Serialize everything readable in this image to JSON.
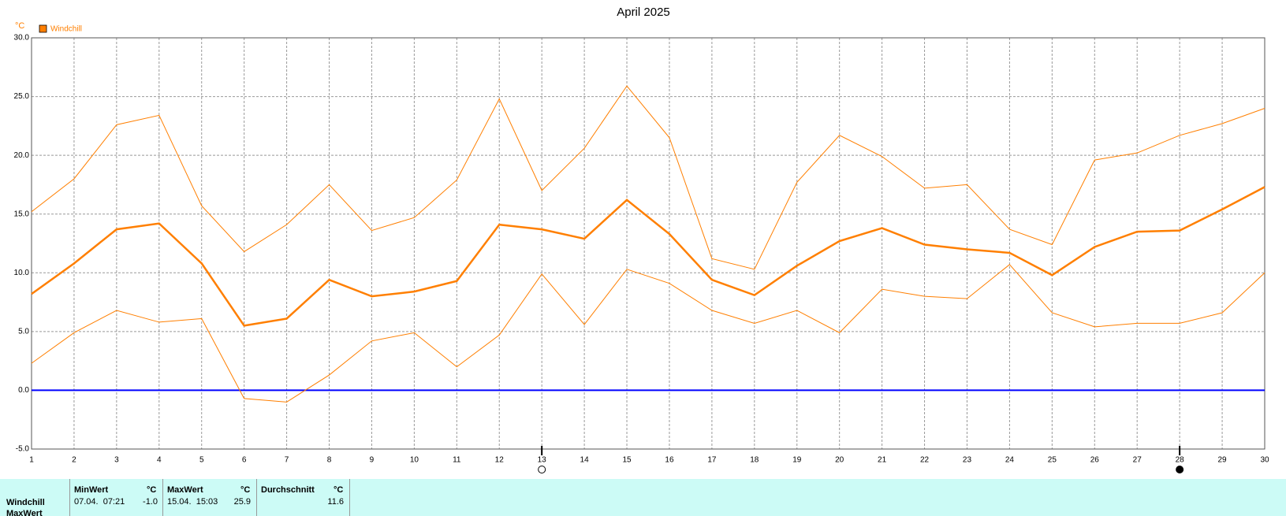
{
  "chart_data": {
    "type": "line",
    "title": "April 2025",
    "y_unit": "°C",
    "x": [
      1,
      2,
      3,
      4,
      5,
      6,
      7,
      8,
      9,
      10,
      11,
      12,
      13,
      14,
      15,
      16,
      17,
      18,
      19,
      20,
      21,
      22,
      23,
      24,
      25,
      26,
      27,
      28,
      29,
      30
    ],
    "xlim": [
      1,
      30
    ],
    "xticks": [
      1,
      2,
      3,
      4,
      5,
      6,
      7,
      8,
      9,
      10,
      11,
      12,
      13,
      14,
      15,
      16,
      17,
      18,
      19,
      20,
      21,
      22,
      23,
      24,
      25,
      26,
      27,
      28,
      29,
      30
    ],
    "ylim": [
      -5,
      30
    ],
    "yticks": [
      {
        "value": -5,
        "label": "-5.0"
      },
      {
        "value": 0,
        "label": "0.0"
      },
      {
        "value": 5,
        "label": "5.0"
      },
      {
        "value": 10,
        "label": "10.0"
      },
      {
        "value": 15,
        "label": "15.0"
      },
      {
        "value": 20,
        "label": "20.0"
      },
      {
        "value": 25,
        "label": "25.0"
      },
      {
        "value": 30,
        "label": "30.0"
      }
    ],
    "grid": true,
    "legend": "top-left",
    "reference_line": 0,
    "reference_color": "#0000ff",
    "full_moon": 13,
    "new_moon": 28,
    "series": [
      {
        "name": "Windchill",
        "color": "#ff7f00",
        "values": [
          8.2,
          10.8,
          13.7,
          14.2,
          10.8,
          5.5,
          6.1,
          9.4,
          8.0,
          8.4,
          9.3,
          14.1,
          13.7,
          12.9,
          16.2,
          13.3,
          9.4,
          8.1,
          10.6,
          12.7,
          13.8,
          12.4,
          12.0,
          11.7,
          9.8,
          12.2,
          13.5,
          13.6,
          15.4,
          17.3
        ],
        "high": [
          15.2,
          18.0,
          22.6,
          23.4,
          15.7,
          11.8,
          14.1,
          17.5,
          13.6,
          14.7,
          17.9,
          24.8,
          17.0,
          20.6,
          25.9,
          21.5,
          11.2,
          10.3,
          17.7,
          21.7,
          19.9,
          17.2,
          17.5,
          13.7,
          12.4,
          19.6,
          20.2,
          21.7,
          22.7,
          24.0
        ],
        "low": [
          2.3,
          4.9,
          6.8,
          5.8,
          6.1,
          -0.7,
          -1.0,
          1.3,
          4.2,
          4.9,
          2.0,
          4.7,
          9.9,
          5.6,
          10.3,
          9.1,
          6.8,
          5.7,
          6.8,
          4.9,
          8.6,
          8.0,
          7.8,
          10.7,
          6.6,
          5.4,
          5.7,
          5.7,
          6.6,
          10.0
        ]
      }
    ]
  },
  "table": {
    "headers": [
      "MinWert",
      "°C",
      "MaxWert",
      "°C",
      "Durchschnitt",
      "°C"
    ],
    "rows": [
      [
        "Windchill",
        "07.04.  07:21",
        "-1.0",
        "15.04.  15:03",
        "25.9",
        "11.6"
      ]
    ],
    "next_row": "MaxWert"
  }
}
